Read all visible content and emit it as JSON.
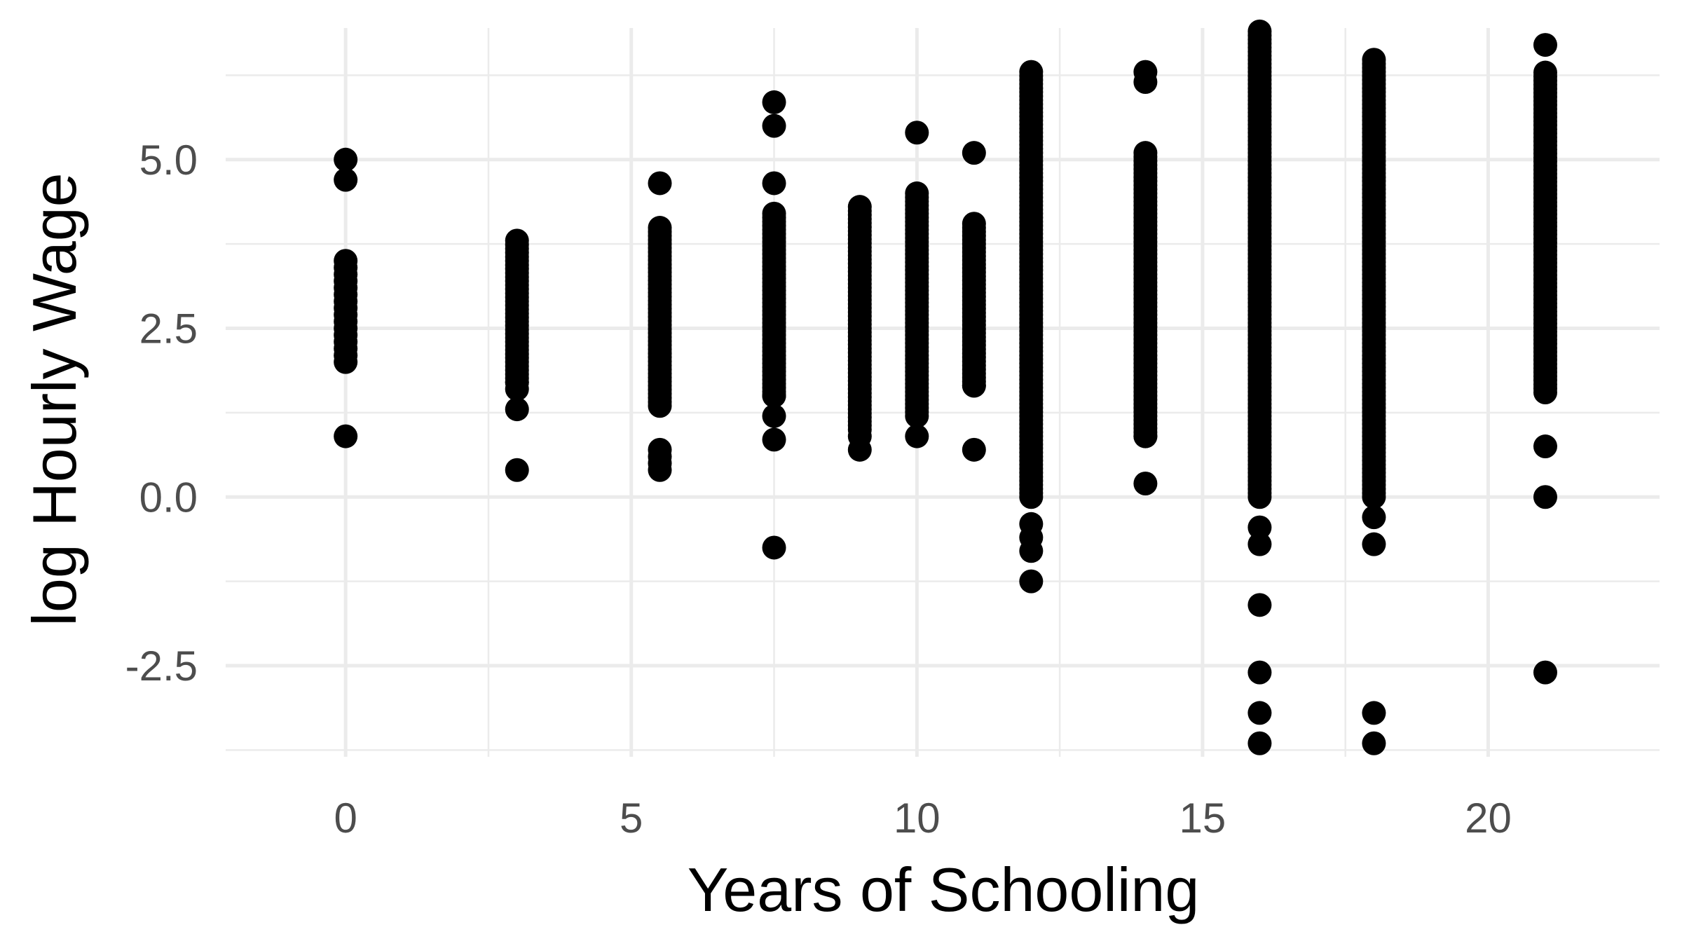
{
  "chart_data": {
    "type": "scatter",
    "xlabel": "Years of Schooling",
    "ylabel": "log Hourly Wage",
    "xlim": [
      -2.1,
      23.0
    ],
    "ylim": [
      -3.85,
      6.95
    ],
    "x_ticks": [
      0,
      5,
      10,
      15,
      20
    ],
    "x_tick_labels": [
      "0",
      "5",
      "10",
      "15",
      "20"
    ],
    "y_ticks": [
      -2.5,
      0.0,
      2.5,
      5.0
    ],
    "y_tick_labels": [
      "-2.5",
      "0.0",
      "2.5",
      "5.0"
    ],
    "grid": true,
    "point_color": "#000000",
    "background": "#ffffff",
    "grid_color": "#ebebeb",
    "series": [
      {
        "x": 0,
        "points": [
          0.9,
          2.0,
          2.1,
          2.2,
          2.3,
          2.4,
          2.5,
          2.6,
          2.7,
          2.8,
          2.9,
          3.0,
          3.1,
          3.2,
          3.3,
          3.4,
          3.5,
          4.7,
          5.0
        ]
      },
      {
        "x": 3,
        "points": [
          0.4,
          1.3,
          1.6,
          1.7
        ],
        "range": [
          1.7,
          3.8
        ]
      },
      {
        "x": 5.5,
        "points": [
          0.4,
          0.5,
          0.6,
          0.7
        ],
        "range": [
          1.35,
          4.0
        ],
        "extra": [
          4.65
        ]
      },
      {
        "x": 7.5,
        "points": [
          -0.75,
          0.85,
          1.2,
          1.5,
          4.65,
          5.5,
          5.85
        ],
        "range": [
          1.5,
          4.2
        ]
      },
      {
        "x": 9,
        "points": [
          0.7,
          0.9
        ],
        "range": [
          1.0,
          4.35
        ]
      },
      {
        "x": 10,
        "points": [
          0.9,
          5.4
        ],
        "range": [
          1.2,
          4.5
        ]
      },
      {
        "x": 11,
        "points": [
          0.7,
          1.65,
          5.1
        ],
        "range": [
          1.65,
          4.1
        ]
      },
      {
        "x": 12,
        "points": [
          -1.25,
          -0.8,
          -0.6,
          -0.4
        ],
        "range": [
          0.0,
          6.3
        ]
      },
      {
        "x": 14,
        "points": [
          0.2,
          0.9,
          6.15,
          6.3
        ],
        "range": [
          0.9,
          5.15
        ]
      },
      {
        "x": 16,
        "points": [
          -3.65,
          -3.2,
          -2.6,
          -1.6,
          -0.7,
          -0.45
        ],
        "range": [
          0.0,
          6.9
        ]
      },
      {
        "x": 18,
        "points": [
          -3.65,
          -3.2,
          -0.7,
          -0.3
        ],
        "range": [
          0.0,
          6.5
        ]
      },
      {
        "x": 21,
        "points": [
          -2.6,
          0.0,
          0.75,
          6.7
        ],
        "range": [
          1.55,
          6.3
        ]
      }
    ]
  }
}
